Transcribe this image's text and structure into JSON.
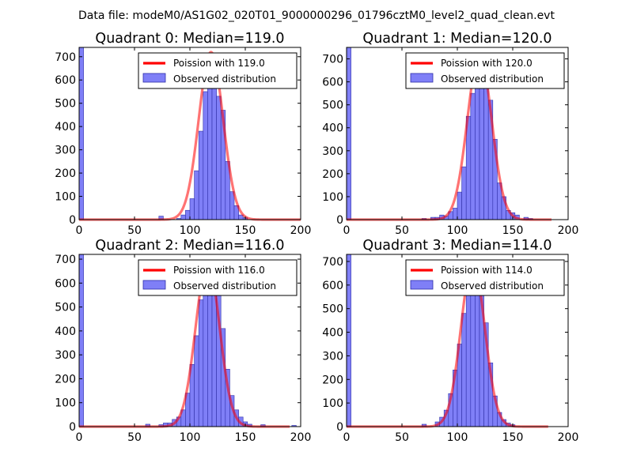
{
  "suptitle": "Data file: modeM0/AS1G02_020T01_9000000296_01796cztM0_level2_quad_clean.evt",
  "colors": {
    "bar_fill": "#7f7ff7",
    "bar_edge": "#2f2fa8",
    "fit_line": "#ff0000"
  },
  "chart_data": [
    {
      "type": "bar",
      "title": "Quadrant 0: Median=119.0",
      "xlim": [
        0,
        200
      ],
      "ylim": [
        0,
        740
      ],
      "xticks": [
        "0",
        "50",
        "100",
        "150",
        "200"
      ],
      "yticks": [
        "0",
        "100",
        "200",
        "300",
        "400",
        "500",
        "600",
        "700"
      ],
      "legend": {
        "placement": "top-right",
        "fit_label": "Poission with 119.0",
        "bar_label": "Observed distribution"
      },
      "bin_width": 4,
      "bins": [
        [
          0,
          740
        ],
        [
          72,
          15
        ],
        [
          88,
          5
        ],
        [
          92,
          20
        ],
        [
          96,
          40
        ],
        [
          100,
          90
        ],
        [
          104,
          210
        ],
        [
          108,
          380
        ],
        [
          112,
          550
        ],
        [
          116,
          640
        ],
        [
          120,
          580
        ],
        [
          124,
          530
        ],
        [
          128,
          470
        ],
        [
          132,
          250
        ],
        [
          136,
          120
        ],
        [
          140,
          60
        ],
        [
          144,
          20
        ],
        [
          148,
          8
        ]
      ],
      "fit": {
        "label": "Poission with 119.0",
        "mean": 119.0,
        "x_range": [
          0,
          200
        ],
        "peak": 720
      }
    },
    {
      "type": "bar",
      "title": "Quadrant 1: Median=120.0",
      "xlim": [
        0,
        200
      ],
      "ylim": [
        0,
        750
      ],
      "xticks": [
        "0",
        "50",
        "100",
        "150",
        "200"
      ],
      "yticks": [
        "0",
        "100",
        "200",
        "300",
        "400",
        "500",
        "600",
        "700"
      ],
      "legend": {
        "placement": "top-right",
        "fit_label": "Poission with 120.0",
        "bar_label": "Observed distribution"
      },
      "bin_width": 4,
      "bins": [
        [
          0,
          750
        ],
        [
          68,
          5
        ],
        [
          76,
          10
        ],
        [
          80,
          10
        ],
        [
          84,
          20
        ],
        [
          88,
          15
        ],
        [
          92,
          35
        ],
        [
          96,
          50
        ],
        [
          100,
          120
        ],
        [
          104,
          230
        ],
        [
          108,
          450
        ],
        [
          112,
          550
        ],
        [
          116,
          600
        ],
        [
          120,
          630
        ],
        [
          124,
          700
        ],
        [
          128,
          520
        ],
        [
          132,
          350
        ],
        [
          136,
          160
        ],
        [
          140,
          100
        ],
        [
          144,
          40
        ],
        [
          148,
          30
        ],
        [
          152,
          20
        ],
        [
          160,
          10
        ],
        [
          164,
          5
        ]
      ],
      "fit": {
        "label": "Poission with 120.0",
        "mean": 120.0,
        "x_range": [
          0,
          185
        ],
        "peak": 720
      }
    },
    {
      "type": "bar",
      "title": "Quadrant 2: Median=116.0",
      "xlim": [
        0,
        200
      ],
      "ylim": [
        0,
        720
      ],
      "xticks": [
        "0",
        "50",
        "100",
        "150",
        "200"
      ],
      "yticks": [
        "0",
        "100",
        "200",
        "300",
        "400",
        "500",
        "600",
        "700"
      ],
      "legend": {
        "placement": "top-right",
        "fit_label": "Poission with 116.0",
        "bar_label": "Observed distribution"
      },
      "bin_width": 4,
      "bins": [
        [
          0,
          720
        ],
        [
          60,
          10
        ],
        [
          72,
          8
        ],
        [
          76,
          15
        ],
        [
          80,
          15
        ],
        [
          84,
          30
        ],
        [
          88,
          40
        ],
        [
          92,
          70
        ],
        [
          96,
          140
        ],
        [
          100,
          260
        ],
        [
          104,
          380
        ],
        [
          108,
          530
        ],
        [
          112,
          650
        ],
        [
          116,
          640
        ],
        [
          120,
          660
        ],
        [
          124,
          570
        ],
        [
          128,
          410
        ],
        [
          132,
          240
        ],
        [
          136,
          130
        ],
        [
          140,
          70
        ],
        [
          144,
          40
        ],
        [
          148,
          20
        ],
        [
          152,
          10
        ],
        [
          164,
          8
        ],
        [
          192,
          5
        ]
      ],
      "fit": {
        "label": "Poission with 116.0",
        "mean": 116.0,
        "x_range": [
          0,
          190
        ],
        "peak": 690
      }
    },
    {
      "type": "bar",
      "title": "Quadrant 3: Median=114.0",
      "xlim": [
        0,
        200
      ],
      "ylim": [
        0,
        730
      ],
      "xticks": [
        "0",
        "50",
        "100",
        "150",
        "200"
      ],
      "yticks": [
        "0",
        "100",
        "200",
        "300",
        "400",
        "500",
        "600",
        "700"
      ],
      "legend": {
        "placement": "top-right",
        "fit_label": "Poission with 114.0",
        "bar_label": "Observed distribution"
      },
      "bin_width": 4,
      "bins": [
        [
          0,
          730
        ],
        [
          68,
          10
        ],
        [
          80,
          20
        ],
        [
          84,
          40
        ],
        [
          88,
          70
        ],
        [
          92,
          140
        ],
        [
          96,
          240
        ],
        [
          100,
          350
        ],
        [
          104,
          480
        ],
        [
          108,
          570
        ],
        [
          112,
          650
        ],
        [
          116,
          700
        ],
        [
          120,
          560
        ],
        [
          124,
          440
        ],
        [
          128,
          270
        ],
        [
          132,
          130
        ],
        [
          136,
          60
        ],
        [
          140,
          30
        ],
        [
          144,
          15
        ],
        [
          148,
          8
        ]
      ],
      "fit": {
        "label": "Poission with 114.0",
        "mean": 114.0,
        "x_range": [
          0,
          182
        ],
        "peak": 700
      }
    }
  ]
}
